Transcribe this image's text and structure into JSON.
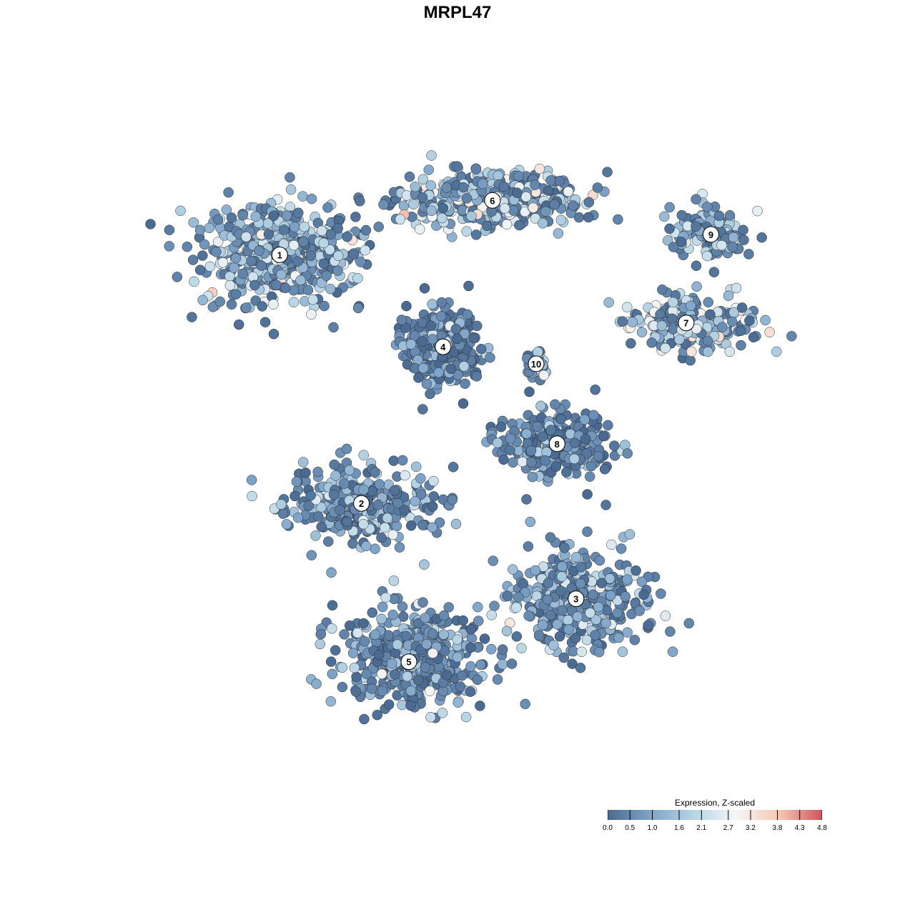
{
  "chart_data": {
    "type": "scatter",
    "title": "MRPL47",
    "xlabel": "",
    "ylabel": "",
    "grid": false,
    "legend": {
      "title": "Expression, Z-scaled",
      "placement": "bottom-right",
      "range": [
        0.0,
        4.8
      ],
      "ticks": [
        "0.0",
        "0.5",
        "1.0",
        "1.6",
        "2.1",
        "2.7",
        "3.2",
        "3.8",
        "4.3",
        "4.8"
      ],
      "colors": [
        "#4a6a91",
        "#7fa4c9",
        "#b6d4e5",
        "#f4f6f7",
        "#f6c7b2",
        "#d1545e"
      ]
    },
    "clusters": [
      {
        "label": "1",
        "x": -7.8,
        "y": 8.8,
        "mean_expression": 1.6
      },
      {
        "label": "2",
        "x": -3.5,
        "y": -5.8,
        "mean_expression": 0.9
      },
      {
        "label": "3",
        "x": 7.8,
        "y": -11.4,
        "mean_expression": 1.1
      },
      {
        "label": "4",
        "x": 0.8,
        "y": 3.4,
        "mean_expression": 0.5
      },
      {
        "label": "5",
        "x": -1.0,
        "y": -15.1,
        "mean_expression": 1.0
      },
      {
        "label": "6",
        "x": 3.4,
        "y": 12.0,
        "mean_expression": 1.8
      },
      {
        "label": "7",
        "x": 13.6,
        "y": 4.8,
        "mean_expression": 1.9
      },
      {
        "label": "8",
        "x": 6.8,
        "y": -2.3,
        "mean_expression": 0.6
      },
      {
        "label": "9",
        "x": 14.9,
        "y": 10.0,
        "mean_expression": 1.5
      },
      {
        "label": "10",
        "x": 5.7,
        "y": 2.4,
        "mean_expression": 1.4
      }
    ]
  }
}
